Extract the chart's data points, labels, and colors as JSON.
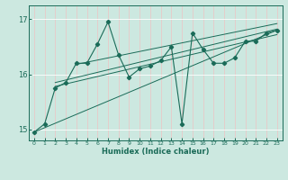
{
  "xlabel": "Humidex (Indice chaleur)",
  "ylabel": "",
  "bg_color": "#cce8e0",
  "grid_color": "#ffffff",
  "line_color": "#1a6b58",
  "xlim": [
    -0.5,
    23.5
  ],
  "ylim": [
    14.8,
    17.25
  ],
  "yticks": [
    15,
    16,
    17
  ],
  "xticks": [
    0,
    1,
    2,
    3,
    4,
    5,
    6,
    7,
    8,
    9,
    10,
    11,
    12,
    13,
    14,
    15,
    16,
    17,
    18,
    19,
    20,
    21,
    22,
    23
  ],
  "series": [
    [
      0,
      14.95
    ],
    [
      1,
      15.1
    ],
    [
      2,
      15.75
    ],
    [
      3,
      15.85
    ],
    [
      4,
      16.2
    ],
    [
      5,
      16.2
    ],
    [
      6,
      16.55
    ],
    [
      7,
      16.95
    ],
    [
      8,
      16.35
    ],
    [
      9,
      15.95
    ],
    [
      10,
      16.1
    ],
    [
      11,
      16.15
    ],
    [
      12,
      16.25
    ],
    [
      13,
      16.5
    ],
    [
      14,
      15.1
    ],
    [
      15,
      16.75
    ],
    [
      16,
      16.45
    ],
    [
      17,
      16.2
    ],
    [
      18,
      16.2
    ],
    [
      19,
      16.3
    ],
    [
      20,
      16.6
    ],
    [
      21,
      16.6
    ],
    [
      22,
      16.75
    ],
    [
      23,
      16.8
    ]
  ],
  "trend_lines": [
    [
      [
        0,
        14.95
      ],
      [
        23,
        16.8
      ]
    ],
    [
      [
        2,
        15.78
      ],
      [
        23,
        16.72
      ]
    ],
    [
      [
        2,
        15.85
      ],
      [
        23,
        16.82
      ]
    ],
    [
      [
        4,
        16.18
      ],
      [
        23,
        16.92
      ]
    ]
  ]
}
